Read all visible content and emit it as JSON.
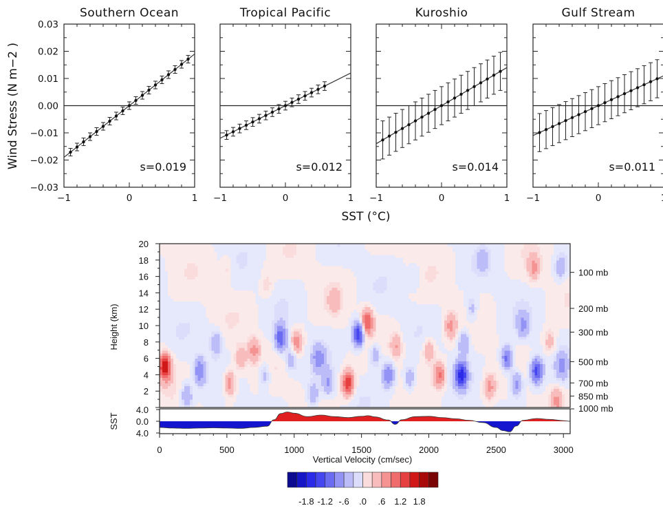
{
  "chart_data": [
    {
      "type": "scatter",
      "layout": "4 panels sharing y-axis",
      "xlabel": "SST (°C)",
      "ylabel": "Wind Stress (N m−2 )",
      "xlim": [
        -1,
        1
      ],
      "ylim": [
        -0.03,
        0.03
      ],
      "xticks": [
        "−1",
        "0",
        "1"
      ],
      "yticks": [
        "−0.03",
        "−0.02",
        "−0.01",
        "0.00",
        "0.01",
        "0.02",
        "0.03"
      ],
      "grid": false,
      "panels": [
        {
          "title": "Southern Ocean",
          "slope_label": "s=0.019",
          "slope": 0.019,
          "x_range": [
            -0.9,
            0.9
          ],
          "err": 0.0014
        },
        {
          "title": "Tropical Pacific",
          "slope_label": "s=0.012",
          "slope": 0.012,
          "x_range": [
            -0.9,
            0.6
          ],
          "err": 0.0016
        },
        {
          "title": "Kuroshio",
          "slope_label": "s=0.014",
          "slope": 0.014,
          "x_range": [
            -0.9,
            0.9
          ],
          "err": 0.007
        },
        {
          "title": "Gulf Stream",
          "slope_label": "s=0.011",
          "slope": 0.011,
          "x_range": [
            -0.9,
            0.9
          ],
          "err": 0.007
        }
      ]
    },
    {
      "type": "heatmap",
      "xlabel": "Vertical Velocity (cm/sec)",
      "ylabel": "Height (km)",
      "xlim": [
        0,
        3050
      ],
      "ylim": [
        0,
        20
      ],
      "xticks": [
        "0",
        "500",
        "1000",
        "1500",
        "2000",
        "2500",
        "3000"
      ],
      "yticks": [
        "2",
        "4",
        "6",
        "8",
        "10",
        "12",
        "14",
        "16",
        "18",
        "20"
      ],
      "pressure_labels": [
        {
          "label": "100  mb",
          "height": 16.5
        },
        {
          "label": "200  mb",
          "height": 12.1
        },
        {
          "label": "300  mb",
          "height": 9.2
        },
        {
          "label": "500  mb",
          "height": 5.6
        },
        {
          "label": "700  mb",
          "height": 3.0
        },
        {
          "label": "850  mb",
          "height": 1.4
        }
      ],
      "features": [
        {
          "x": 40,
          "h": 5.0,
          "v": 1.8
        },
        {
          "x": 200,
          "h": 1.5,
          "v": -0.7
        },
        {
          "x": 300,
          "h": 4.5,
          "v": -0.9
        },
        {
          "x": 420,
          "h": 8.0,
          "v": -0.6
        },
        {
          "x": 520,
          "h": 3.0,
          "v": 0.9
        },
        {
          "x": 600,
          "h": 6.0,
          "v": 0.6
        },
        {
          "x": 700,
          "h": 7.0,
          "v": 0.7
        },
        {
          "x": 780,
          "h": 4.0,
          "v": -0.5
        },
        {
          "x": 900,
          "h": 8.5,
          "v": -1.2
        },
        {
          "x": 980,
          "h": 6.0,
          "v": -0.6
        },
        {
          "x": 1020,
          "h": 8.0,
          "v": 0.8
        },
        {
          "x": 1140,
          "h": 1.5,
          "v": -0.6
        },
        {
          "x": 1180,
          "h": 6.0,
          "v": -0.7
        },
        {
          "x": 1250,
          "h": 3.0,
          "v": -0.6
        },
        {
          "x": 1400,
          "h": 3.0,
          "v": 1.5
        },
        {
          "x": 1480,
          "h": 9.0,
          "v": -1.6
        },
        {
          "x": 1540,
          "h": 10.5,
          "v": 1.3
        },
        {
          "x": 1600,
          "h": 6.5,
          "v": -0.6
        },
        {
          "x": 1700,
          "h": 4.0,
          "v": -0.9
        },
        {
          "x": 1760,
          "h": 7.5,
          "v": 0.6
        },
        {
          "x": 1860,
          "h": 3.5,
          "v": -0.6
        },
        {
          "x": 2000,
          "h": 7.0,
          "v": 0.6
        },
        {
          "x": 2080,
          "h": 4.0,
          "v": 1.0
        },
        {
          "x": 2160,
          "h": 10.0,
          "v": 0.7
        },
        {
          "x": 2240,
          "h": 4.0,
          "v": -1.5
        },
        {
          "x": 2260,
          "h": 8.0,
          "v": -0.7
        },
        {
          "x": 2320,
          "h": 12.0,
          "v": -0.5
        },
        {
          "x": 2450,
          "h": 2.5,
          "v": 0.7
        },
        {
          "x": 2580,
          "h": 6.0,
          "v": -1.1
        },
        {
          "x": 2650,
          "h": 3.0,
          "v": -0.8
        },
        {
          "x": 2700,
          "h": 10.0,
          "v": -0.6
        },
        {
          "x": 2780,
          "h": 17.0,
          "v": 0.6
        },
        {
          "x": 2800,
          "h": 4.5,
          "v": -1.3
        },
        {
          "x": 2900,
          "h": 8.0,
          "v": 0.5
        },
        {
          "x": 2950,
          "h": 1.0,
          "v": 0.6
        },
        {
          "x": 2980,
          "h": 17.0,
          "v": -0.5
        },
        {
          "x": 2990,
          "h": 5.0,
          "v": -0.6
        },
        {
          "x": 800,
          "h": 15.0,
          "v": 0.3
        },
        {
          "x": 1900,
          "h": 16.0,
          "v": -0.3
        },
        {
          "x": 2400,
          "h": 18.0,
          "v": -0.3
        },
        {
          "x": 500,
          "h": 17.0,
          "v": 0.3
        },
        {
          "x": 1300,
          "h": 13.0,
          "v": 0.4
        }
      ],
      "colorbar": {
        "tick_labels": [
          "-1.8",
          "-1.2",
          "-.6",
          ".0",
          ".6",
          "1.2",
          "1.8"
        ],
        "levels": [
          -2.1,
          -1.8,
          -1.5,
          -1.2,
          -0.9,
          -0.6,
          -0.3,
          0.0,
          0.3,
          0.6,
          0.9,
          1.2,
          1.5,
          1.8,
          2.1
        ]
      }
    },
    {
      "type": "area",
      "ylabel": "SST",
      "yticks": [
        "4.0",
        "0.0",
        "4.0"
      ],
      "extra_label": "1000 mb",
      "positive_color": "#e02020",
      "negative_color": "#1515d0",
      "x": [
        0,
        100,
        200,
        300,
        400,
        500,
        600,
        700,
        800,
        850,
        900,
        950,
        1000,
        1100,
        1200,
        1300,
        1400,
        1500,
        1550,
        1600,
        1700,
        1750,
        1800,
        1900,
        2000,
        2100,
        2200,
        2300,
        2400,
        2500,
        2550,
        2600,
        2650,
        2700,
        2800,
        2900,
        3000,
        3050
      ],
      "y": [
        -2.0,
        -2.2,
        -2.3,
        -2.2,
        -2.1,
        -2.2,
        -2.3,
        -2.0,
        -1.6,
        0.5,
        2.5,
        3.0,
        2.6,
        1.5,
        2.0,
        1.5,
        1.2,
        1.6,
        1.8,
        1.4,
        0.4,
        -1.0,
        0.5,
        1.5,
        1.6,
        1.2,
        0.8,
        0.3,
        -0.4,
        -2.0,
        -3.0,
        -3.4,
        -1.5,
        0.3,
        0.9,
        0.6,
        0.2,
        0.0
      ]
    }
  ]
}
